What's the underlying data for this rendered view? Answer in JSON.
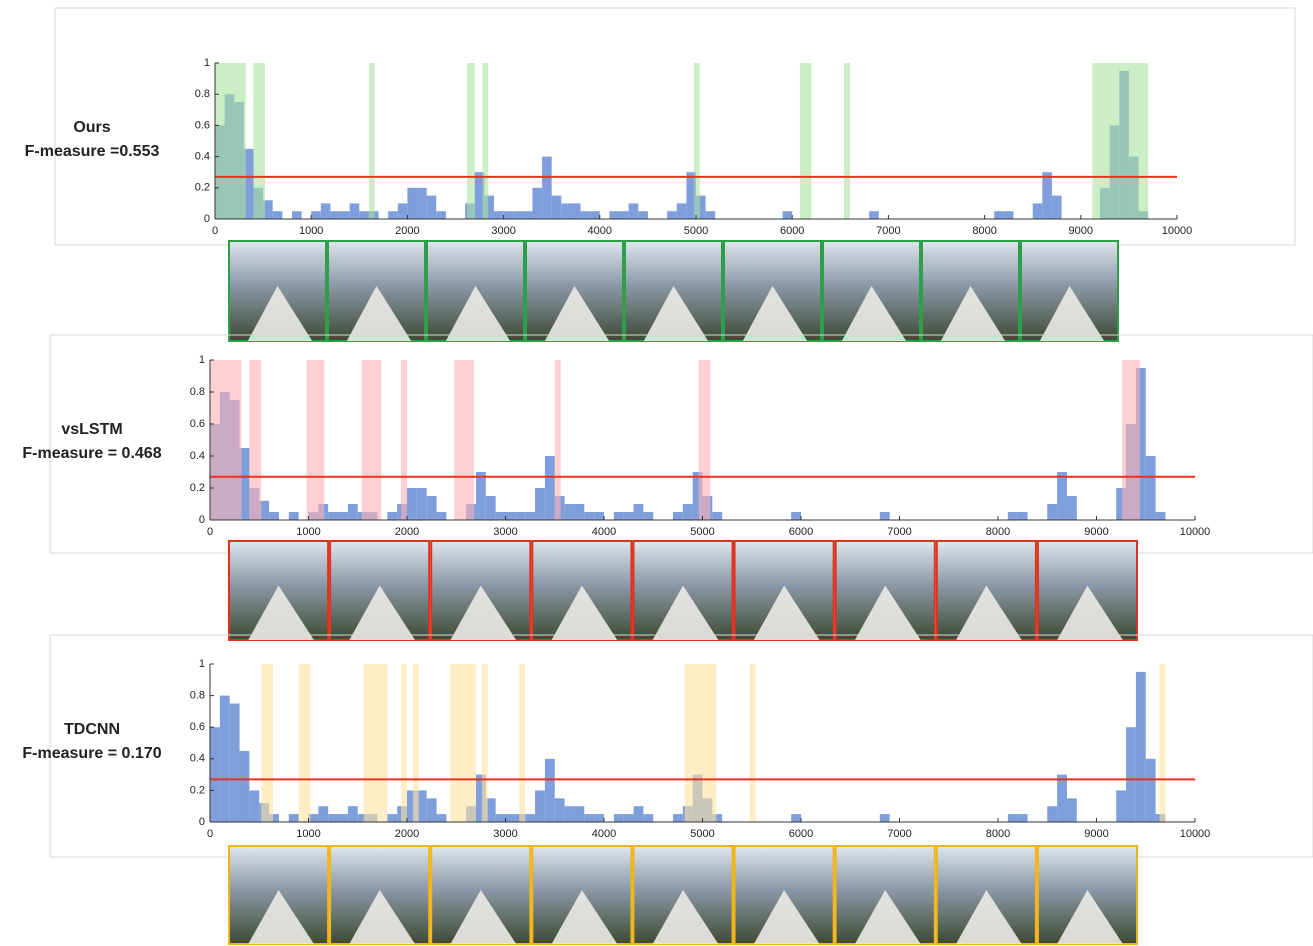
{
  "chart_data": [
    {
      "type": "histogram",
      "title": "Ours",
      "subtitle": "F-measure =0.553",
      "bins": [
        0,
        100,
        200,
        300,
        400,
        500,
        600,
        700,
        800,
        900,
        1000,
        1100,
        1200,
        1300,
        1400,
        1500,
        1600,
        1700,
        1800,
        1900,
        2000,
        2100,
        2200,
        2300,
        2400,
        2500,
        2600,
        2700,
        2800,
        2900,
        3000,
        3100,
        3200,
        3300,
        3400,
        3500,
        3600,
        3700,
        3800,
        3900,
        4000,
        4100,
        4200,
        4300,
        4400,
        4500,
        4600,
        4700,
        4800,
        4900,
        5000,
        5100,
        5200,
        5300,
        5400,
        5500,
        5600,
        5700,
        5800,
        5900,
        6000,
        6100,
        6200,
        6300,
        6400,
        6500,
        6600,
        6700,
        6800,
        6900,
        7000,
        7100,
        7200,
        7300,
        7400,
        7500,
        7600,
        7700,
        7800,
        7900,
        8000,
        8100,
        8200,
        8300,
        8400,
        8500,
        8600,
        8700,
        8800,
        8900,
        9000,
        9100,
        9200,
        9300,
        9400,
        9500,
        9600,
        9700
      ],
      "values": [
        0.6,
        0.8,
        0.75,
        0.45,
        0.2,
        0.12,
        0.05,
        0,
        0.05,
        0,
        0.05,
        0.1,
        0.05,
        0.05,
        0.1,
        0.05,
        0.05,
        0,
        0.05,
        0.1,
        0.2,
        0.2,
        0.15,
        0.05,
        0,
        0,
        0.1,
        0.3,
        0.15,
        0.05,
        0.05,
        0.05,
        0.05,
        0.2,
        0.4,
        0.15,
        0.1,
        0.1,
        0.05,
        0.05,
        0,
        0.05,
        0.05,
        0.1,
        0.05,
        0,
        0,
        0.05,
        0.1,
        0.3,
        0.15,
        0.05,
        0,
        0,
        0,
        0,
        0,
        0,
        0,
        0.05,
        0,
        0,
        0,
        0,
        0,
        0,
        0,
        0,
        0.05,
        0,
        0,
        0,
        0,
        0,
        0,
        0,
        0,
        0,
        0,
        0,
        0,
        0.05,
        0.05,
        0,
        0,
        0.1,
        0.3,
        0.15,
        0,
        0,
        0,
        0,
        0.2,
        0.6,
        0.95,
        0.4,
        0.05
      ],
      "color": "#7f9fdc",
      "spans": [
        [
          0,
          320
        ],
        [
          400,
          520
        ],
        [
          1600,
          1660
        ],
        [
          2620,
          2700
        ],
        [
          2780,
          2840
        ],
        [
          4980,
          5040
        ],
        [
          6080,
          6200
        ],
        [
          6540,
          6600
        ],
        [
          9120,
          9700
        ]
      ],
      "span_color": "#a8e2a0",
      "frame_color": "#2e9e4a",
      "threshold": 0.27,
      "threshold_color": "#e8321e",
      "xlim": [
        0,
        10000
      ],
      "xticks": [
        0,
        1000,
        2000,
        3000,
        4000,
        5000,
        6000,
        7000,
        8000,
        9000,
        10000
      ],
      "ylim": [
        0,
        1
      ],
      "yticks": [
        0,
        0.2,
        0.4,
        0.6,
        0.8,
        1
      ]
    },
    {
      "type": "histogram",
      "title": "vsLSTM",
      "subtitle": "F-measure = 0.468",
      "bins": [
        0,
        100,
        200,
        300,
        400,
        500,
        600,
        700,
        800,
        900,
        1000,
        1100,
        1200,
        1300,
        1400,
        1500,
        1600,
        1700,
        1800,
        1900,
        2000,
        2100,
        2200,
        2300,
        2400,
        2500,
        2600,
        2700,
        2800,
        2900,
        3000,
        3100,
        3200,
        3300,
        3400,
        3500,
        3600,
        3700,
        3800,
        3900,
        4000,
        4100,
        4200,
        4300,
        4400,
        4500,
        4600,
        4700,
        4800,
        4900,
        5000,
        5100,
        5200,
        5300,
        5400,
        5500,
        5600,
        5700,
        5800,
        5900,
        6000,
        6100,
        6200,
        6300,
        6400,
        6500,
        6600,
        6700,
        6800,
        6900,
        7000,
        7100,
        7200,
        7300,
        7400,
        7500,
        7600,
        7700,
        7800,
        7900,
        8000,
        8100,
        8200,
        8300,
        8400,
        8500,
        8600,
        8700,
        8800,
        8900,
        9000,
        9100,
        9200,
        9300,
        9400,
        9500,
        9600,
        9700
      ],
      "values": [
        0.6,
        0.8,
        0.75,
        0.45,
        0.2,
        0.12,
        0.05,
        0,
        0.05,
        0,
        0.05,
        0.1,
        0.05,
        0.05,
        0.1,
        0.05,
        0.05,
        0,
        0.05,
        0.1,
        0.2,
        0.2,
        0.15,
        0.05,
        0,
        0,
        0.1,
        0.3,
        0.15,
        0.05,
        0.05,
        0.05,
        0.05,
        0.2,
        0.4,
        0.15,
        0.1,
        0.1,
        0.05,
        0.05,
        0,
        0.05,
        0.05,
        0.1,
        0.05,
        0,
        0,
        0.05,
        0.1,
        0.3,
        0.15,
        0.05,
        0,
        0,
        0,
        0,
        0,
        0,
        0,
        0.05,
        0,
        0,
        0,
        0,
        0,
        0,
        0,
        0,
        0.05,
        0,
        0,
        0,
        0,
        0,
        0,
        0,
        0,
        0,
        0,
        0,
        0,
        0.05,
        0.05,
        0,
        0,
        0.1,
        0.3,
        0.15,
        0,
        0,
        0,
        0,
        0.2,
        0.6,
        0.95,
        0.4,
        0.05
      ],
      "color": "#7f9fdc",
      "spans": [
        [
          0,
          320
        ],
        [
          400,
          520
        ],
        [
          980,
          1160
        ],
        [
          1540,
          1740
        ],
        [
          1940,
          2000
        ],
        [
          2480,
          2680
        ],
        [
          3500,
          3560
        ],
        [
          4960,
          5080
        ],
        [
          9260,
          9440
        ]
      ],
      "span_color": "#ffb0b4",
      "frame_color": "#e0301e",
      "threshold": 0.27,
      "threshold_color": "#e8321e",
      "xlim": [
        0,
        10000
      ],
      "xticks": [
        0,
        1000,
        2000,
        3000,
        4000,
        5000,
        6000,
        7000,
        8000,
        9000,
        10000
      ],
      "ylim": [
        0,
        1
      ],
      "yticks": [
        0,
        0.2,
        0.4,
        0.6,
        0.8,
        1
      ]
    },
    {
      "type": "histogram",
      "title": "TDCNN",
      "subtitle": "F-measure = 0.170",
      "bins": [
        0,
        100,
        200,
        300,
        400,
        500,
        600,
        700,
        800,
        900,
        1000,
        1100,
        1200,
        1300,
        1400,
        1500,
        1600,
        1700,
        1800,
        1900,
        2000,
        2100,
        2200,
        2300,
        2400,
        2500,
        2600,
        2700,
        2800,
        2900,
        3000,
        3100,
        3200,
        3300,
        3400,
        3500,
        3600,
        3700,
        3800,
        3900,
        4000,
        4100,
        4200,
        4300,
        4400,
        4500,
        4600,
        4700,
        4800,
        4900,
        5000,
        5100,
        5200,
        5300,
        5400,
        5500,
        5600,
        5700,
        5800,
        5900,
        6000,
        6100,
        6200,
        6300,
        6400,
        6500,
        6600,
        6700,
        6800,
        6900,
        7000,
        7100,
        7200,
        7300,
        7400,
        7500,
        7600,
        7700,
        7800,
        7900,
        8000,
        8100,
        8200,
        8300,
        8400,
        8500,
        8600,
        8700,
        8800,
        8900,
        9000,
        9100,
        9200,
        9300,
        9400,
        9500,
        9600,
        9700
      ],
      "values": [
        0.6,
        0.8,
        0.75,
        0.45,
        0.2,
        0.12,
        0.05,
        0,
        0.05,
        0,
        0.05,
        0.1,
        0.05,
        0.05,
        0.1,
        0.05,
        0.05,
        0,
        0.05,
        0.1,
        0.2,
        0.2,
        0.15,
        0.05,
        0,
        0,
        0.1,
        0.3,
        0.15,
        0.05,
        0.05,
        0.05,
        0.05,
        0.2,
        0.4,
        0.15,
        0.1,
        0.1,
        0.05,
        0.05,
        0,
        0.05,
        0.05,
        0.1,
        0.05,
        0,
        0,
        0.05,
        0.1,
        0.3,
        0.15,
        0.05,
        0,
        0,
        0,
        0,
        0,
        0,
        0,
        0.05,
        0,
        0,
        0,
        0,
        0,
        0,
        0,
        0,
        0.05,
        0,
        0,
        0,
        0,
        0,
        0,
        0,
        0,
        0,
        0,
        0,
        0,
        0.05,
        0.05,
        0,
        0,
        0.1,
        0.3,
        0.15,
        0,
        0,
        0,
        0,
        0.2,
        0.6,
        0.95,
        0.4,
        0.05
      ],
      "color": "#7f9fdc",
      "spans": [
        [
          520,
          640
        ],
        [
          900,
          1020
        ],
        [
          1560,
          1800
        ],
        [
          1940,
          2000
        ],
        [
          2060,
          2120
        ],
        [
          2440,
          2700
        ],
        [
          2760,
          2820
        ],
        [
          3140,
          3200
        ],
        [
          4820,
          5140
        ],
        [
          5480,
          5540
        ],
        [
          9640,
          9700
        ]
      ],
      "span_color": "#fde3a0",
      "frame_color": "#f0b419",
      "threshold": 0.27,
      "threshold_color": "#e8321e",
      "xlim": [
        0,
        10000
      ],
      "xticks": [
        0,
        1000,
        2000,
        3000,
        4000,
        5000,
        6000,
        7000,
        8000,
        9000,
        10000
      ],
      "ylim": [
        0,
        1
      ],
      "yticks": [
        0,
        0.2,
        0.4,
        0.6,
        0.8,
        1
      ]
    }
  ]
}
